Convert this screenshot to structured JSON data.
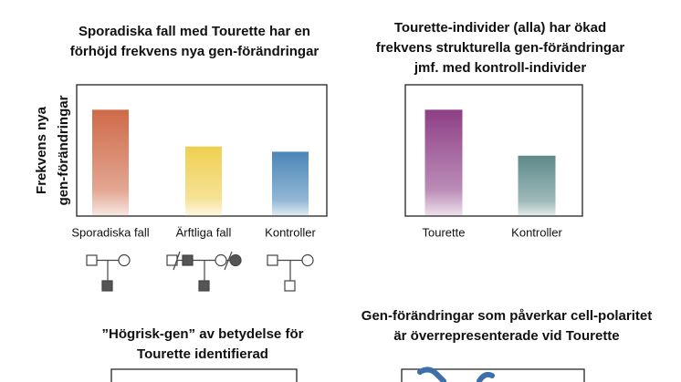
{
  "chart_data": [
    {
      "type": "bar",
      "title": [
        "Sporadiska fall med Tourette har en",
        "förhöjd frekvens nya gen-förändringar"
      ],
      "y_label": [
        "Frekvens nya",
        "gen-förändringar"
      ],
      "categories": [
        "Sporadiska fall",
        "Ärftliga fall",
        "Kontroller"
      ],
      "values": [
        81,
        53,
        49
      ],
      "colors": [
        "#cf6a48",
        "#f0cf50",
        "#4a86b8"
      ],
      "ylim": [
        0,
        100
      ]
    },
    {
      "type": "bar",
      "title": [
        "Tourette-individer (alla) har ökad",
        "frekvens strukturella gen-förändringar",
        "jmf. med kontroll-individer"
      ],
      "categories": [
        "Tourette",
        "Kontroller"
      ],
      "values": [
        81,
        46
      ],
      "colors": [
        "#8e3f86",
        "#5e8a8a"
      ],
      "ylim": [
        0,
        100
      ]
    }
  ],
  "panels": [
    {
      "title": [
        "”Högrisk-gen” av betydelse för",
        "Tourette identifierad"
      ]
    },
    {
      "title": [
        "Gen-förändringar som påverkar cell-polaritet",
        "är överrepresenterade vid Tourette"
      ]
    }
  ]
}
